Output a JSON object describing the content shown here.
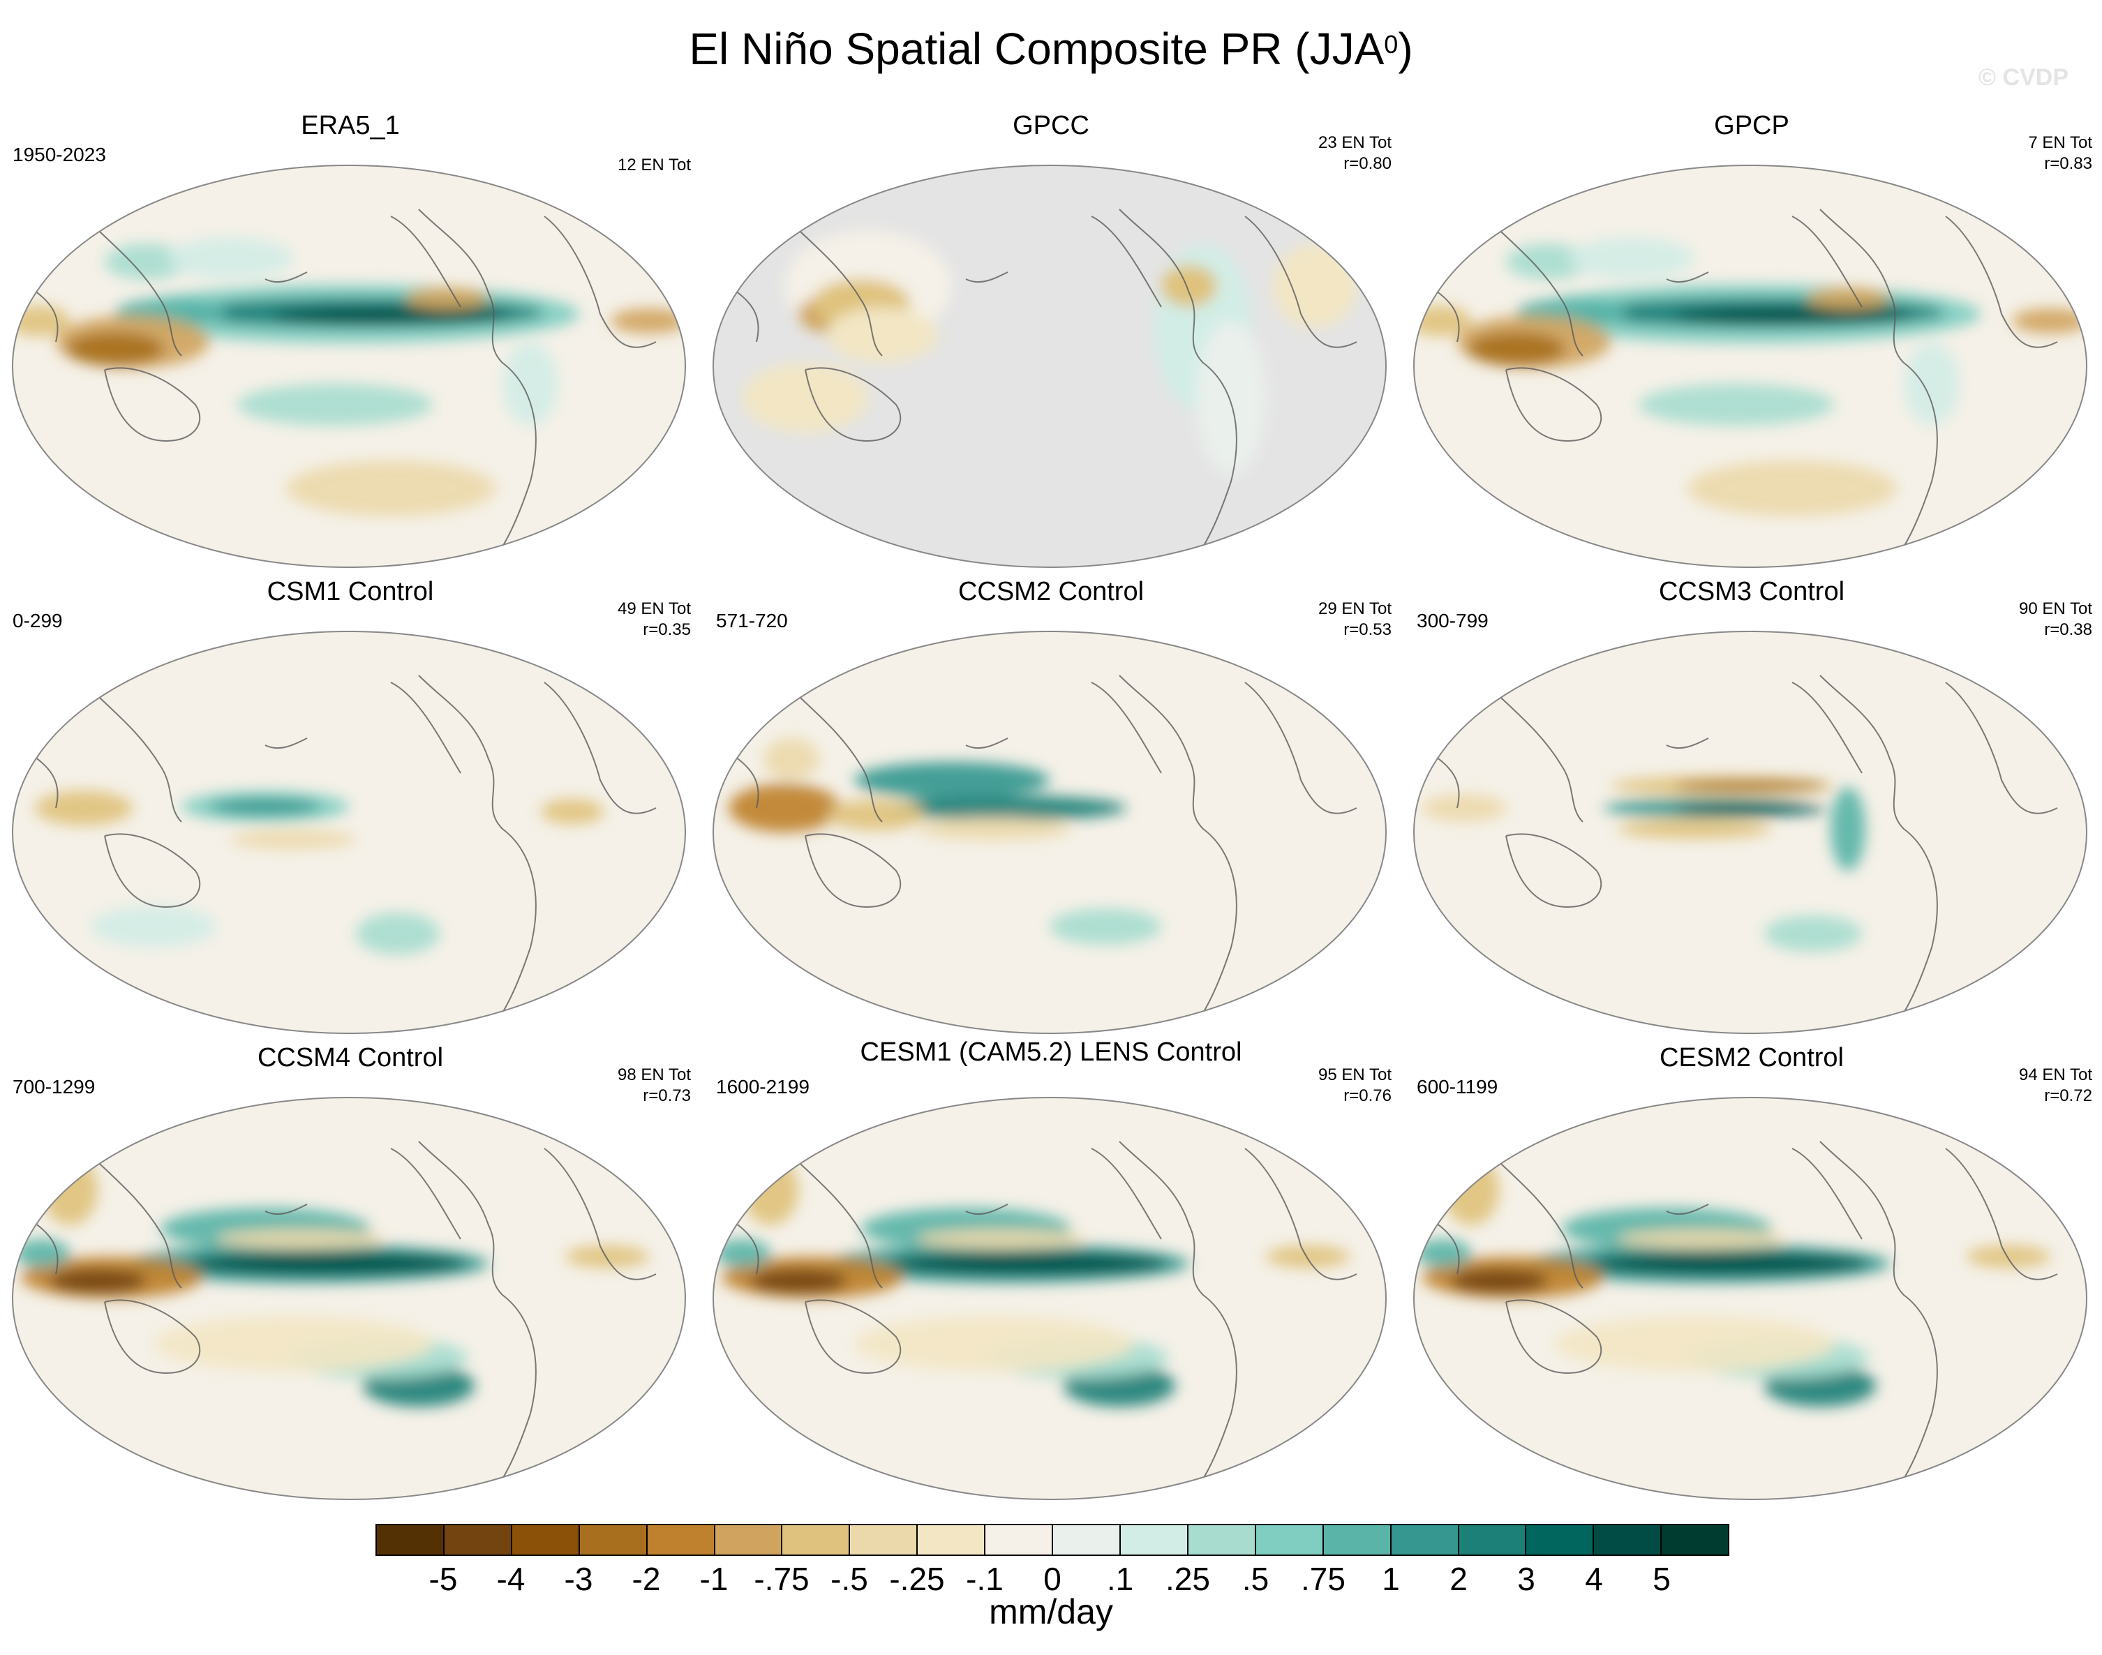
{
  "title": "El Niño Spatial Composite PR (JJA",
  "title_sup": "0",
  "title_close": ")",
  "watermark": "© CVDP",
  "units": "mm/day",
  "colors": {
    "ocean_gray": "#e4e4e4",
    "neutral": "#f5f1e8",
    "coast": "#5a5a5a"
  },
  "colorbar": {
    "colors": [
      "#543005",
      "#744410",
      "#8c5109",
      "#a8701e",
      "#bf812d",
      "#d0a45e",
      "#dfc27d",
      "#ecd9ab",
      "#f2e6c4",
      "#f5f1e8",
      "#eaf0ec",
      "#d2ede6",
      "#a8dccf",
      "#80cdc1",
      "#5ab4a8",
      "#35978f",
      "#1c8078",
      "#01665e",
      "#014d45",
      "#003c30"
    ],
    "labels": [
      "-5",
      "-4",
      "-3",
      "-2",
      "-1",
      "-.75",
      "-.5",
      "-.25",
      "-.1",
      "0",
      ".1",
      ".25",
      ".5",
      ".75",
      "1",
      "2",
      "3",
      "4",
      "5"
    ]
  },
  "panels": [
    {
      "title": "ERA5_1",
      "years": "1950-2023",
      "stats": [
        "12 EN Tot"
      ],
      "variant": "obs-strong",
      "masked": false
    },
    {
      "title": "GPCC",
      "years": "",
      "stats": [
        "23 EN Tot",
        "r=0.80"
      ],
      "variant": "land-only",
      "masked": true
    },
    {
      "title": "GPCP",
      "years": "",
      "stats": [
        "7 EN Tot",
        "r=0.83"
      ],
      "variant": "obs-strong",
      "masked": false
    },
    {
      "title": "CSM1 Control",
      "years": "0-299",
      "stats": [
        "49 EN Tot",
        "r=0.35"
      ],
      "variant": "model-weak",
      "masked": false
    },
    {
      "title": "CCSM2 Control",
      "years": "571-720",
      "stats": [
        "29 EN Tot",
        "r=0.53"
      ],
      "variant": "model-mid",
      "masked": false
    },
    {
      "title": "CCSM3 Control",
      "years": "300-799",
      "stats": [
        "90 EN Tot",
        "r=0.38"
      ],
      "variant": "model-split",
      "masked": false
    },
    {
      "title": "CCSM4 Control",
      "years": "700-1299",
      "stats": [
        "98 EN Tot",
        "r=0.73"
      ],
      "variant": "model-strong",
      "masked": false
    },
    {
      "title": "CESM1 (CAM5.2) LENS Control",
      "years": "1600-2199",
      "stats": [
        "95 EN Tot",
        "r=0.76"
      ],
      "variant": "model-strong",
      "masked": false
    },
    {
      "title": "CESM2 Control",
      "years": "600-1199",
      "stats": [
        "94 EN Tot",
        "r=0.72"
      ],
      "variant": "model-strong",
      "masked": false
    }
  ]
}
